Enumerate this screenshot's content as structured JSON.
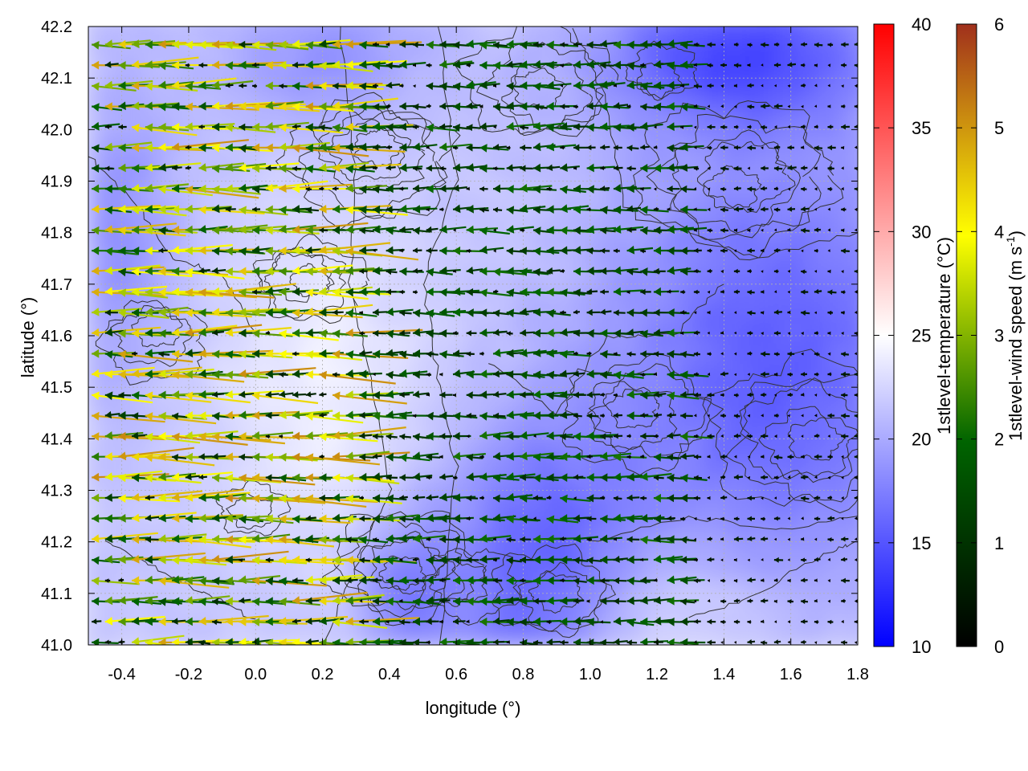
{
  "chart_data": {
    "type": "heatmap",
    "title": "",
    "xlabel": "longitude (°)",
    "ylabel": "latitude (°)",
    "xlim": [
      -0.5,
      1.8
    ],
    "ylim": [
      41.0,
      42.2
    ],
    "x_ticks": [
      "-0.4",
      "-0.2",
      "0.0",
      "0.2",
      "0.4",
      "0.6",
      "0.8",
      "1.0",
      "1.2",
      "1.4",
      "1.6",
      "1.8"
    ],
    "y_ticks": [
      "41.0",
      "41.1",
      "41.2",
      "41.3",
      "41.4",
      "41.5",
      "41.6",
      "41.7",
      "41.8",
      "41.9",
      "42.0",
      "42.1",
      "42.2"
    ],
    "grid": true,
    "colorbars": [
      {
        "label": "1stlevel-temperature (°C)",
        "range": [
          10,
          40
        ],
        "ticks": [
          "10",
          "15",
          "20",
          "25",
          "30",
          "35",
          "40"
        ],
        "colors": [
          "#0000ff",
          "#ffffff",
          "#ff0000"
        ]
      },
      {
        "label_main": "1stlevel-wind speed (m s",
        "label_sup": "-1",
        "label_end": ")",
        "range": [
          0,
          6
        ],
        "ticks": [
          "0",
          "1",
          "2",
          "3",
          "4",
          "5",
          "6"
        ],
        "colors": [
          "#000000",
          "#006400",
          "#ffff00",
          "#a0301c"
        ]
      }
    ],
    "overlay": {
      "contours": "terrain elevation (black lines)",
      "vectors": "wind arrows, mostly westward",
      "approx_wind_speed_by_region": [
        {
          "region": "west (lon < 0.3)",
          "speed_m_s": 3.5
        },
        {
          "region": "center (0.3 < lon < 1.3)",
          "speed_m_s": 1.5
        },
        {
          "region": "east (lon > 1.3)",
          "speed_m_s": 0.4
        }
      ],
      "approx_temperature_range_c": [
        15,
        24
      ]
    }
  }
}
